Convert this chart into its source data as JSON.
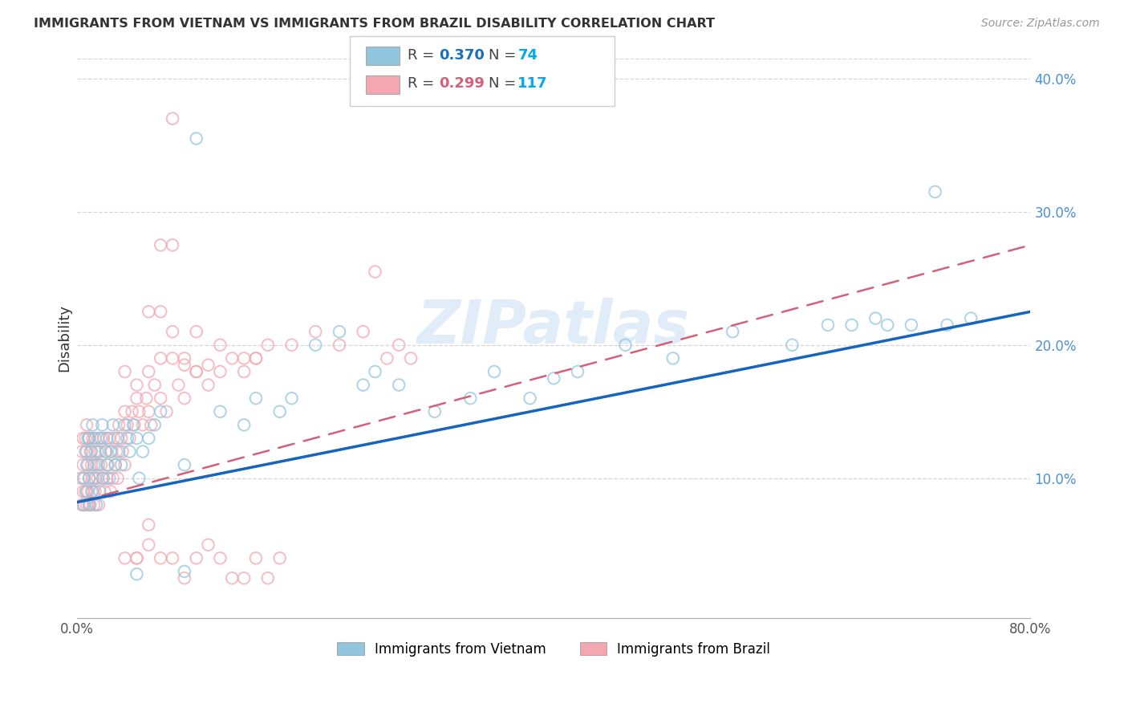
{
  "title": "IMMIGRANTS FROM VIETNAM VS IMMIGRANTS FROM BRAZIL DISABILITY CORRELATION CHART",
  "source": "Source: ZipAtlas.com",
  "ylabel": "Disability",
  "watermark": "ZIPatlas",
  "N_vietnam": 74,
  "N_brazil": 117,
  "xlim": [
    0.0,
    0.8
  ],
  "ylim": [
    -0.005,
    0.415
  ],
  "yticks_right": [
    0.1,
    0.2,
    0.3,
    0.4
  ],
  "ytick_labels_right": [
    "10.0%",
    "20.0%",
    "30.0%",
    "40.0%"
  ],
  "color_vietnam": "#92c5de",
  "color_brazil": "#f4a7b0",
  "trendline_vietnam_color": "#1565c0",
  "trendline_brazil_color": "#d4607a",
  "bg_color": "#ffffff",
  "grid_color": "#cccccc",
  "title_color": "#333333",
  "source_color": "#999999",
  "watermark_color": "#c8dff5",
  "legend_box_color": "#dddddd",
  "vietnam_x": [
    0.005,
    0.005,
    0.007,
    0.008,
    0.008,
    0.009,
    0.01,
    0.01,
    0.01,
    0.012,
    0.013,
    0.013,
    0.014,
    0.015,
    0.015,
    0.016,
    0.017,
    0.018,
    0.019,
    0.02,
    0.021,
    0.022,
    0.024,
    0.025,
    0.025,
    0.027,
    0.028,
    0.03,
    0.032,
    0.034,
    0.035,
    0.037,
    0.04,
    0.042,
    0.044,
    0.047,
    0.05,
    0.052,
    0.055,
    0.06,
    0.065,
    0.07,
    0.09,
    0.1,
    0.12,
    0.14,
    0.15,
    0.17,
    0.18,
    0.2,
    0.22,
    0.24,
    0.25,
    0.27,
    0.3,
    0.33,
    0.35,
    0.38,
    0.4,
    0.42,
    0.46,
    0.5,
    0.55,
    0.6,
    0.63,
    0.65,
    0.67,
    0.68,
    0.7,
    0.72,
    0.73,
    0.75,
    0.09,
    0.05
  ],
  "vietnam_y": [
    0.08,
    0.1,
    0.12,
    0.09,
    0.11,
    0.13,
    0.08,
    0.1,
    0.13,
    0.12,
    0.09,
    0.14,
    0.11,
    0.1,
    0.13,
    0.08,
    0.12,
    0.11,
    0.09,
    0.13,
    0.14,
    0.1,
    0.12,
    0.11,
    0.13,
    0.1,
    0.12,
    0.14,
    0.11,
    0.13,
    0.12,
    0.11,
    0.14,
    0.13,
    0.12,
    0.14,
    0.13,
    0.1,
    0.12,
    0.13,
    0.14,
    0.15,
    0.11,
    0.355,
    0.15,
    0.14,
    0.16,
    0.15,
    0.16,
    0.2,
    0.21,
    0.17,
    0.18,
    0.17,
    0.15,
    0.16,
    0.18,
    0.16,
    0.175,
    0.18,
    0.2,
    0.19,
    0.21,
    0.2,
    0.215,
    0.215,
    0.22,
    0.215,
    0.215,
    0.315,
    0.215,
    0.22,
    0.03,
    0.028
  ],
  "brazil_x": [
    0.003,
    0.004,
    0.004,
    0.005,
    0.005,
    0.005,
    0.006,
    0.006,
    0.007,
    0.007,
    0.008,
    0.008,
    0.008,
    0.009,
    0.009,
    0.01,
    0.01,
    0.01,
    0.011,
    0.011,
    0.012,
    0.012,
    0.013,
    0.013,
    0.014,
    0.015,
    0.015,
    0.016,
    0.017,
    0.018,
    0.018,
    0.019,
    0.02,
    0.021,
    0.022,
    0.023,
    0.024,
    0.025,
    0.026,
    0.027,
    0.028,
    0.029,
    0.03,
    0.031,
    0.032,
    0.033,
    0.034,
    0.035,
    0.037,
    0.038,
    0.04,
    0.04,
    0.042,
    0.044,
    0.046,
    0.048,
    0.05,
    0.052,
    0.055,
    0.058,
    0.06,
    0.062,
    0.065,
    0.07,
    0.075,
    0.08,
    0.085,
    0.09,
    0.1,
    0.11,
    0.12,
    0.13,
    0.14,
    0.15,
    0.16,
    0.18,
    0.2,
    0.22,
    0.24,
    0.25,
    0.26,
    0.27,
    0.28,
    0.04,
    0.05,
    0.06,
    0.06,
    0.07,
    0.08,
    0.08,
    0.09,
    0.1,
    0.12,
    0.14,
    0.15,
    0.08,
    0.07,
    0.09,
    0.1,
    0.11,
    0.06,
    0.05,
    0.07,
    0.08,
    0.09,
    0.1,
    0.11,
    0.12,
    0.13,
    0.14,
    0.15,
    0.16,
    0.17,
    0.04,
    0.05,
    0.06,
    0.07
  ],
  "brazil_y": [
    0.1,
    0.08,
    0.12,
    0.09,
    0.11,
    0.13,
    0.08,
    0.1,
    0.13,
    0.09,
    0.12,
    0.08,
    0.14,
    0.09,
    0.11,
    0.08,
    0.1,
    0.13,
    0.08,
    0.12,
    0.09,
    0.11,
    0.1,
    0.13,
    0.08,
    0.09,
    0.12,
    0.11,
    0.1,
    0.13,
    0.08,
    0.12,
    0.11,
    0.1,
    0.13,
    0.09,
    0.12,
    0.1,
    0.11,
    0.13,
    0.09,
    0.12,
    0.1,
    0.13,
    0.11,
    0.12,
    0.1,
    0.14,
    0.13,
    0.12,
    0.15,
    0.11,
    0.14,
    0.13,
    0.15,
    0.14,
    0.16,
    0.15,
    0.14,
    0.16,
    0.15,
    0.14,
    0.17,
    0.16,
    0.15,
    0.37,
    0.17,
    0.16,
    0.18,
    0.17,
    0.18,
    0.19,
    0.18,
    0.19,
    0.2,
    0.2,
    0.21,
    0.2,
    0.21,
    0.255,
    0.19,
    0.2,
    0.19,
    0.04,
    0.04,
    0.05,
    0.225,
    0.275,
    0.21,
    0.19,
    0.19,
    0.21,
    0.2,
    0.19,
    0.19,
    0.275,
    0.225,
    0.185,
    0.18,
    0.185,
    0.065,
    0.04,
    0.04,
    0.04,
    0.025,
    0.04,
    0.05,
    0.04,
    0.025,
    0.025,
    0.04,
    0.025,
    0.04,
    0.18,
    0.17,
    0.18,
    0.19
  ],
  "trendline_vietnam_x0": 0.0,
  "trendline_vietnam_y0": 0.082,
  "trendline_vietnam_x1": 0.8,
  "trendline_vietnam_y1": 0.225,
  "trendline_brazil_x0": 0.0,
  "trendline_brazil_y0": 0.082,
  "trendline_brazil_x1": 0.8,
  "trendline_brazil_y1": 0.275
}
